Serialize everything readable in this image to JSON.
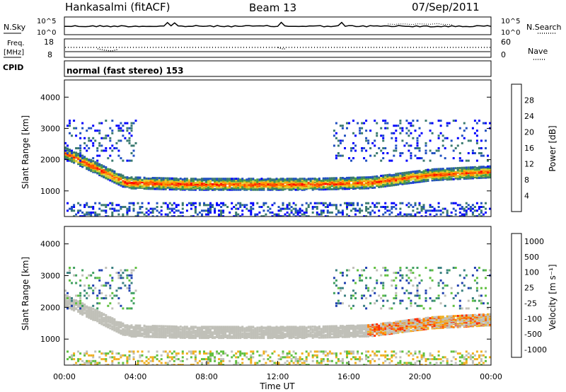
{
  "header": {
    "station": "Hankasalmi (fitACF)",
    "beam": "Beam 13",
    "date": "07/Sep/2011"
  },
  "sky_panel": {
    "left_label": "N.Sky",
    "left_ticks": [
      "10^5",
      "10^0"
    ],
    "right_ticks": [
      "10^5",
      "10^0"
    ],
    "right_label": "N.Search"
  },
  "freq_panel": {
    "left_label_line1": "Freq.",
    "left_label_line2": "[MHz]",
    "left_ticks": [
      "18",
      "8"
    ],
    "right_ticks": [
      "60",
      "0"
    ],
    "right_label": "Nave"
  },
  "cpid_panel": {
    "label": "CPID",
    "mode_text": "normal (fast stereo) 153"
  },
  "chart_data": [
    {
      "type": "heatmap",
      "name": "power",
      "ylabel": "Slant Range [km]",
      "y_ticks": [
        "1000",
        "2000",
        "3000",
        "4000"
      ],
      "ylim": [
        180,
        4550
      ],
      "xlim_hours": [
        0,
        24
      ],
      "colorbar": {
        "label": "Power [dB]",
        "ticks": [
          "4",
          "8",
          "12",
          "16",
          "20",
          "24",
          "28"
        ],
        "colors": [
          "#0000ff",
          "#2050c0",
          "#3a7a70",
          "#4aa040",
          "#e0d030",
          "#ff9a00",
          "#ff5000",
          "#ff0000"
        ]
      },
      "backscatter_bands": [
        {
          "label": "main band",
          "start_hour": 0.0,
          "end_hour": 24.0,
          "ranges_km": [
            2250,
            1300,
            1250,
            1250,
            1250,
            1300,
            1550,
            1650
          ]
        }
      ]
    },
    {
      "type": "heatmap",
      "name": "velocity",
      "ylabel": "Slant Range [km]",
      "y_ticks": [
        "1000",
        "2000",
        "3000",
        "4000"
      ],
      "ylim": [
        180,
        4550
      ],
      "xlim_hours": [
        0,
        24
      ],
      "xlabel": "Time UT",
      "x_ticks": [
        "00:00",
        "04:00",
        "08:00",
        "12:00",
        "16:00",
        "20:00",
        "00:00"
      ],
      "colorbar": {
        "label": "Velocity [m s⁻¹]",
        "ticks": [
          "1000",
          "500",
          "100",
          "25",
          "-25",
          "-100",
          "-500",
          "-1000"
        ],
        "colors": [
          "#2040b0",
          "#3a8080",
          "#40a060",
          "#60c040",
          "#c0c0b8",
          "#f0b020",
          "#ff8000",
          "#ff3000",
          "#ff0000"
        ]
      }
    }
  ]
}
